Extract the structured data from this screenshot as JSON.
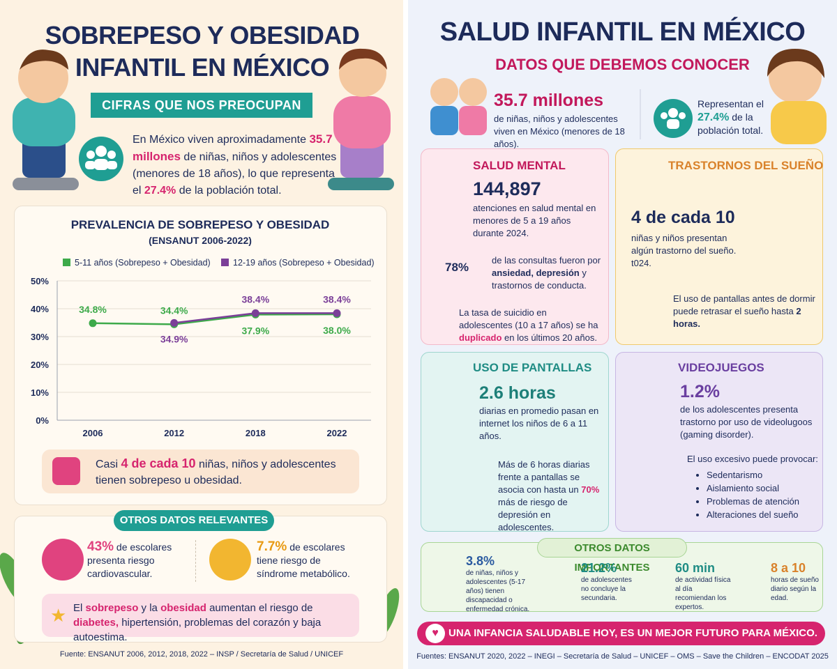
{
  "left": {
    "title": "SOBREPESO Y OBESIDAD INFANTIL EN MÉXICO",
    "banner": "CIFRAS QUE NOS PREOCUPAN",
    "intro": [
      "En México viven aproximadamente",
      "35.7 millones",
      "de niñas, niños y adolescentes (menores de 18 años), lo que representa el",
      "27.4%",
      "de la población total."
    ],
    "callout": [
      "Casi",
      "4 de cada 10",
      "niñas, niños y adolescentes tienen sobrepeso u obesidad."
    ],
    "others_title": "OTROS DATOS RELEVANTES",
    "facts": [
      {
        "value": "43%",
        "text": "de escolares presenta riesgo cardiovascular."
      },
      {
        "value": "7.7%",
        "text": "de escolares tiene riesgo de síndrome metabólico."
      }
    ],
    "warning": [
      "El",
      "sobrepeso",
      "y la",
      "obesidad",
      "aumentan el riesgo de",
      "diabetes,",
      "hipertensión, problemas del corazón y baja autoestima."
    ],
    "source": "Fuente: ENSANUT 2006, 2012, 2018, 2022 – INSP / Secretaría de Salud / UNICEF"
  },
  "chart_data": {
    "type": "line",
    "title": "PREVALENCIA DE SOBREPESO Y OBESIDAD",
    "subtitle": "(ENSANUT 2006-2022)",
    "categories": [
      "2006",
      "2012",
      "2018",
      "2022"
    ],
    "series": [
      {
        "name": "5-11 años (Sobrepeso + Obesidad)",
        "color": "#3daa4a",
        "values": [
          34.8,
          34.4,
          37.9,
          38.0
        ],
        "value_labels": [
          "34.8%",
          "34.4%",
          "37.9%",
          "38.0%"
        ]
      },
      {
        "name": "12-19 años (Sobrepeso + Obesidad)",
        "color": "#7b3f98",
        "values": [
          null,
          34.9,
          38.4,
          38.4
        ],
        "value_labels": [
          null,
          "34.9%",
          "38.4%",
          "38.4%"
        ]
      }
    ],
    "ylim": [
      0,
      50
    ],
    "yticks": [
      {
        "value": 0,
        "label": "0%"
      },
      {
        "value": 10,
        "label": "10%"
      },
      {
        "value": 20,
        "label": "20%"
      },
      {
        "value": 30,
        "label": "30%"
      },
      {
        "value": 40,
        "label": "40%"
      },
      {
        "value": 50,
        "label": "50%"
      }
    ],
    "grid": true
  },
  "right": {
    "title": "SALUD INFANTIL EN MÉXICO",
    "subtitle": "DATOS QUE DEBEMOS CONOCER",
    "pop": {
      "value": "35.7 millones",
      "text": "de niñas, niños y adolescentes viven en México (menores de 18 años)."
    },
    "share": [
      "Representan el",
      "27.4%",
      "de la población total."
    ],
    "mental": {
      "title": "SALUD MENTAL",
      "value": "144,897",
      "text": "atenciones en salud mental en menores de 5 a 19 años durante 2024.",
      "donut": "78%",
      "donut_text": [
        "de las consultas fueron por",
        "ansiedad, depresión",
        "y trastornos de conducta."
      ],
      "suicide": [
        "La tasa de suicidio en adolescentes (10 a 17 años) se ha",
        "duplicado",
        "en los últimos 20 años."
      ]
    },
    "sleep": {
      "title": "TRASTORNOS DEL SUEÑO",
      "value": "4 de cada 10",
      "text": "niñas y niños presentan algún trastorno del sueño. t024.",
      "screens": [
        "El uso de pantallas antes de dormir puede retrasar el sueño hasta",
        "2 horas."
      ]
    },
    "screens": {
      "title": "USO DE PANTALLAS",
      "value": "2.6 horas",
      "text": "diarias en promedio pasan en internet los niños de 6 a 11 años.",
      "risk": [
        "Más de 6 horas diarias frente a pantallas se asocia con hasta un",
        "70%",
        "más de riesgo de depresión en adolescentes."
      ]
    },
    "games": {
      "title": "VIDEOJUEGOS",
      "value": "1.2%",
      "text": "de los adolescentes presenta trastorno por uso de videolugoos (gaming disorder).",
      "lead": "El uso excesivo puede provocar:",
      "items": [
        "Sedentarismo",
        "Aislamiento social",
        "Problemas de atención",
        "Alteraciones del sueño"
      ]
    },
    "others": {
      "title": "OTROS DATOS IMPORTANTES",
      "items": [
        {
          "value": "3.8%",
          "text": "de niñas, niños y adolescentes (5-17 años) tienen discapacidad o enfermedad crónica."
        },
        {
          "value": "21.2%",
          "text": "de adolescentes no concluye la secundaria."
        },
        {
          "value": "60 min",
          "text": "de actividad física al día recomiendan los expertos."
        },
        {
          "value": "8 a 10",
          "text": "horas de sueño diario según la edad."
        }
      ]
    },
    "banner": "UNA INFANCIA SALUDABLE HOY, ES UN MEJOR FUTURO PARA MÉXICO.",
    "source": "Fuentes: ENSANUT 2020, 2022 – INEGI – Secretaría de Salud – UNICEF – OMS – Save the Children – ENCODAT 2025"
  }
}
